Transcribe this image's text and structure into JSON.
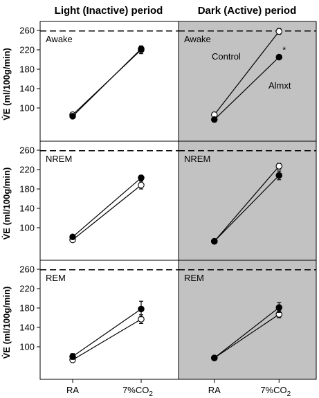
{
  "column_titles": [
    "Light (Inactive) period",
    "Dark (Active) period"
  ],
  "chart_data": [
    {
      "type": "line",
      "column": "Light (Inactive) period",
      "panel_label": "Awake",
      "background": "white",
      "categories": [
        "RA",
        "7%CO2"
      ],
      "ylabel": "V̇E (ml/100g/min)",
      "ylim": [
        60,
        265
      ],
      "yticks": [
        100,
        140,
        180,
        220,
        260
      ],
      "reference_line": 259,
      "series": [
        {
          "marker": "open",
          "values": [
            86,
            220
          ],
          "errors": [
            3,
            8
          ]
        },
        {
          "marker": "filled",
          "values": [
            83,
            222
          ],
          "errors": [
            2,
            6
          ]
        }
      ]
    },
    {
      "type": "line",
      "column": "Dark (Active) period",
      "panel_label": "Awake",
      "background": "gray",
      "categories": [
        "RA",
        "7%CO2"
      ],
      "ylim": [
        60,
        265
      ],
      "reference_line": 259,
      "series": [
        {
          "name": "Control",
          "marker": "open",
          "values": [
            86,
            258
          ],
          "errors": [
            2,
            6
          ]
        },
        {
          "name": "Almxt",
          "marker": "filled",
          "values": [
            76,
            205
          ],
          "errors": [
            2,
            0
          ]
        }
      ],
      "annotations": [
        "*"
      ]
    },
    {
      "type": "line",
      "column": "Light (Inactive) period",
      "panel_label": "NREM",
      "background": "white",
      "categories": [
        "RA",
        "7%CO2"
      ],
      "ylabel": "V̇E (ml/100g/min)",
      "ylim": [
        60,
        265
      ],
      "yticks": [
        100,
        140,
        180,
        220,
        260
      ],
      "reference_line": 259,
      "series": [
        {
          "marker": "open",
          "values": [
            75,
            188
          ],
          "errors": [
            2,
            8
          ]
        },
        {
          "marker": "filled",
          "values": [
            81,
            203
          ],
          "errors": [
            2,
            5
          ]
        }
      ]
    },
    {
      "type": "line",
      "column": "Dark (Active) period",
      "panel_label": "NREM",
      "background": "gray",
      "categories": [
        "RA",
        "7%CO2"
      ],
      "ylim": [
        60,
        265
      ],
      "reference_line": 259,
      "series": [
        {
          "marker": "open",
          "values": [
            72,
            227
          ],
          "errors": [
            2,
            6
          ]
        },
        {
          "marker": "filled",
          "values": [
            72,
            208
          ],
          "errors": [
            2,
            9
          ]
        }
      ]
    },
    {
      "type": "line",
      "column": "Light (Inactive) period",
      "panel_label": "REM",
      "background": "white",
      "categories": [
        "RA",
        "7%CO2"
      ],
      "ylabel": "V̇E (ml/100g/min)",
      "ylim": [
        60,
        265
      ],
      "yticks": [
        100,
        140,
        180,
        220,
        260
      ],
      "reference_line": 259,
      "series": [
        {
          "marker": "open",
          "values": [
            73,
            157
          ],
          "errors": [
            4,
            9
          ]
        },
        {
          "marker": "filled",
          "values": [
            80,
            178
          ],
          "errors": [
            6,
            16
          ]
        }
      ]
    },
    {
      "type": "line",
      "column": "Dark (Active) period",
      "panel_label": "REM",
      "background": "gray",
      "categories": [
        "RA",
        "7%CO2"
      ],
      "ylim": [
        60,
        265
      ],
      "reference_line": 259,
      "series": [
        {
          "marker": "open",
          "values": [
            77,
            167
          ],
          "errors": [
            2,
            7
          ]
        },
        {
          "marker": "filled",
          "values": [
            77,
            181
          ],
          "errors": [
            2,
            10
          ]
        }
      ]
    }
  ],
  "x_tick_labels": [
    "RA",
    "7%CO",
    "2"
  ],
  "colors": {
    "gray_background": "#c2c2c2",
    "white_background": "#ffffff",
    "ink": "#000000"
  }
}
